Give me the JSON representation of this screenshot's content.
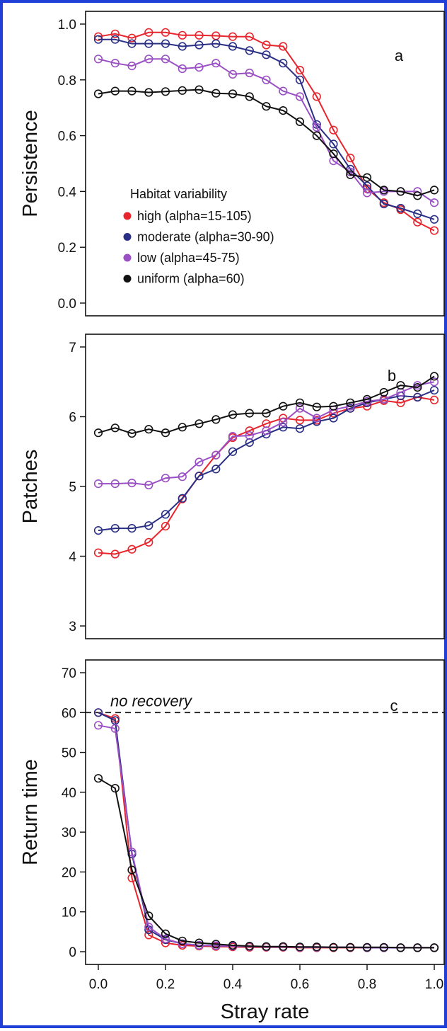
{
  "chart_data": [
    {
      "type": "line",
      "panel_label": "a",
      "ylabel": "Persistence",
      "xlabel": "",
      "ylim": [
        0,
        1
      ],
      "xlim": [
        0,
        1
      ],
      "yticks": [
        "0.0",
        "0.2",
        "0.4",
        "0.6",
        "0.8",
        "1.0"
      ],
      "xticks": [],
      "x": [
        0,
        0.05,
        0.1,
        0.15,
        0.2,
        0.25,
        0.3,
        0.35,
        0.4,
        0.45,
        0.5,
        0.55,
        0.6,
        0.65,
        0.7,
        0.75,
        0.8,
        0.85,
        0.9,
        0.95,
        1.0
      ],
      "legend": {
        "title": "Habitat variability",
        "placement": "center-left"
      },
      "series": [
        {
          "name": "high (alpha=15-105)",
          "color": "#e8242c",
          "values": [
            0.955,
            0.965,
            0.95,
            0.97,
            0.97,
            0.96,
            0.96,
            0.958,
            0.955,
            0.955,
            0.925,
            0.92,
            0.835,
            0.74,
            0.62,
            0.52,
            0.41,
            0.36,
            0.335,
            0.29,
            0.26
          ]
        },
        {
          "name": "moderate (alpha=30-90)",
          "color": "#2a2f86",
          "values": [
            0.945,
            0.945,
            0.93,
            0.93,
            0.93,
            0.92,
            0.925,
            0.93,
            0.92,
            0.905,
            0.89,
            0.86,
            0.8,
            0.64,
            0.57,
            0.48,
            0.42,
            0.355,
            0.34,
            0.32,
            0.3
          ]
        },
        {
          "name": "low (alpha=45-75)",
          "color": "#9a4fc4",
          "values": [
            0.875,
            0.86,
            0.85,
            0.875,
            0.875,
            0.84,
            0.845,
            0.86,
            0.82,
            0.825,
            0.8,
            0.76,
            0.74,
            0.63,
            0.51,
            0.47,
            0.395,
            0.4,
            0.4,
            0.4,
            0.36
          ]
        },
        {
          "name": "uniform (alpha=60)",
          "color": "#111111",
          "values": [
            0.75,
            0.76,
            0.76,
            0.755,
            0.758,
            0.762,
            0.765,
            0.752,
            0.75,
            0.74,
            0.705,
            0.69,
            0.65,
            0.6,
            0.535,
            0.46,
            0.45,
            0.405,
            0.4,
            0.385,
            0.405
          ]
        }
      ]
    },
    {
      "type": "line",
      "panel_label": "b",
      "ylabel": "Patches",
      "xlabel": "",
      "ylim": [
        3,
        7
      ],
      "xlim": [
        0,
        1
      ],
      "yticks": [
        "3",
        "4",
        "5",
        "6",
        "7"
      ],
      "xticks": [],
      "x": [
        0,
        0.05,
        0.1,
        0.15,
        0.2,
        0.25,
        0.3,
        0.35,
        0.4,
        0.45,
        0.5,
        0.55,
        0.6,
        0.65,
        0.7,
        0.75,
        0.8,
        0.85,
        0.9,
        0.95,
        1.0
      ],
      "series": [
        {
          "name": "high (alpha=15-105)",
          "color": "#e8242c",
          "values": [
            4.05,
            4.03,
            4.1,
            4.2,
            4.43,
            4.82,
            5.15,
            5.45,
            5.7,
            5.8,
            5.9,
            5.98,
            5.95,
            5.95,
            6.05,
            6.12,
            6.15,
            6.23,
            6.2,
            6.28,
            6.24
          ]
        },
        {
          "name": "moderate (alpha=30-90)",
          "color": "#2a2f86",
          "values": [
            4.37,
            4.4,
            4.4,
            4.44,
            4.6,
            4.83,
            5.15,
            5.25,
            5.5,
            5.63,
            5.75,
            5.85,
            5.83,
            5.93,
            5.98,
            6.12,
            6.2,
            6.25,
            6.3,
            6.28,
            6.38
          ]
        },
        {
          "name": "low (alpha=45-75)",
          "color": "#9a4fc4",
          "values": [
            5.04,
            5.04,
            5.05,
            5.02,
            5.12,
            5.14,
            5.35,
            5.45,
            5.72,
            5.73,
            5.8,
            5.92,
            6.12,
            5.98,
            6.1,
            6.15,
            6.22,
            6.25,
            6.35,
            6.45,
            6.5
          ]
        },
        {
          "name": "uniform (alpha=60)",
          "color": "#111111",
          "values": [
            5.77,
            5.84,
            5.76,
            5.82,
            5.77,
            5.85,
            5.9,
            5.96,
            6.03,
            6.05,
            6.05,
            6.15,
            6.2,
            6.14,
            6.15,
            6.2,
            6.25,
            6.35,
            6.45,
            6.42,
            6.58
          ]
        }
      ]
    },
    {
      "type": "line",
      "panel_label": "c",
      "ylabel": "Return time",
      "xlabel": "Stray rate",
      "ylim": [
        0,
        70
      ],
      "xlim": [
        0,
        1
      ],
      "yticks": [
        "0",
        "10",
        "20",
        "30",
        "40",
        "50",
        "60",
        "70"
      ],
      "xticks": [
        "0.0",
        "0.2",
        "0.4",
        "0.6",
        "0.8",
        "1.0"
      ],
      "reference_line": {
        "y": 60,
        "style": "dashed",
        "label": "no recovery"
      },
      "x": [
        0,
        0.05,
        0.1,
        0.15,
        0.2,
        0.25,
        0.3,
        0.35,
        0.4,
        0.45,
        0.5,
        0.55,
        0.6,
        0.65,
        0.7,
        0.75,
        0.8,
        0.85,
        0.9,
        0.95,
        1.0
      ],
      "series": [
        {
          "name": "high (alpha=15-105)",
          "color": "#e8242c",
          "values": [
            60,
            58.5,
            18.5,
            4.2,
            2.2,
            1.6,
            1.4,
            1.3,
            1.2,
            1.1,
            1.1,
            1.1,
            1.0,
            1.0,
            1.0,
            1.0,
            1.0,
            1.0,
            1.0,
            1.0,
            1.0
          ]
        },
        {
          "name": "moderate (alpha=30-90)",
          "color": "#2a2f86",
          "values": [
            60,
            58,
            24.5,
            5.5,
            3.0,
            2.0,
            1.6,
            1.5,
            1.4,
            1.3,
            1.2,
            1.2,
            1.1,
            1.1,
            1.1,
            1.1,
            1.0,
            1.0,
            1.0,
            1.0,
            1.0
          ]
        },
        {
          "name": "low (alpha=45-75)",
          "color": "#9a4fc4",
          "values": [
            56.8,
            56,
            25,
            6.2,
            3.2,
            2.0,
            1.6,
            1.5,
            1.4,
            1.3,
            1.2,
            1.2,
            1.1,
            1.1,
            1.1,
            1.1,
            1.0,
            1.0,
            1.0,
            1.0,
            1.0
          ]
        },
        {
          "name": "uniform (alpha=60)",
          "color": "#111111",
          "values": [
            43.5,
            41,
            20.5,
            9.0,
            4.5,
            2.7,
            2.2,
            1.9,
            1.6,
            1.4,
            1.3,
            1.3,
            1.2,
            1.2,
            1.1,
            1.1,
            1.1,
            1.1,
            1.0,
            1.0,
            1.0
          ]
        }
      ]
    }
  ]
}
